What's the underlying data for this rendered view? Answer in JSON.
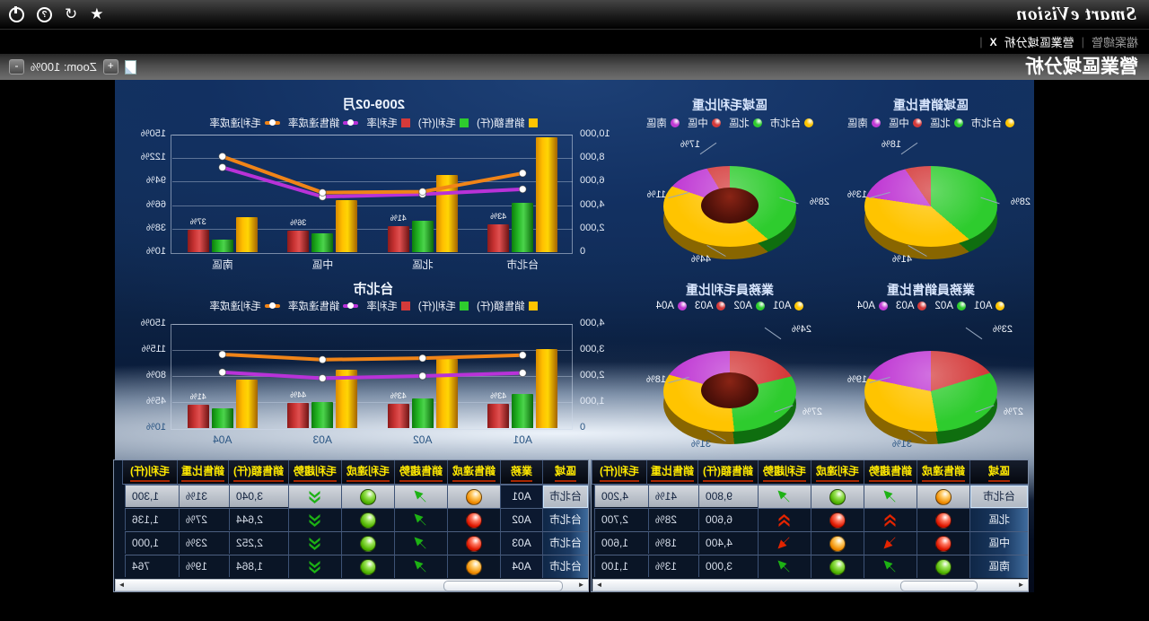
{
  "app": {
    "logo": "Smart eVision",
    "window_icons": [
      "star",
      "refresh",
      "help",
      "power"
    ]
  },
  "tabs": {
    "separator": "|",
    "close_glyph": "X",
    "items": [
      {
        "label": "檔案總管",
        "active": false
      },
      {
        "label": "營業區域分析",
        "active": true
      }
    ]
  },
  "page": {
    "title": "營業區域分析",
    "zoom_label": "Zoom: 100%",
    "zoom_in": "+",
    "zoom_out": "-"
  },
  "colors": {
    "sales_bar": "#ffc400",
    "profit_bar": "#2ecc2e",
    "rate_bar": "#d43a3a",
    "sales_rate_line": "#b832d8",
    "profit_rate_line": "#f08418",
    "header_text": "#ffe900",
    "header_underline": "#a82600",
    "series_taipei": "#ffc400",
    "series_north": "#2ecc2e",
    "series_central": "#d43a3a",
    "series_south": "#c03ad4"
  },
  "chart_data": [
    {
      "type": "bar",
      "id": "combo-month",
      "title": "2009-02月",
      "categories": [
        "台北市",
        "北區",
        "中區",
        "南區"
      ],
      "series": [
        {
          "name": "銷售額(仟)",
          "kind": "bar",
          "axis": "left",
          "color_key": "sales_bar",
          "values": [
            9800,
            6600,
            4400,
            3000
          ]
        },
        {
          "name": "毛利(仟)",
          "kind": "bar",
          "axis": "left",
          "color_key": "profit_bar",
          "values": [
            4200,
            2700,
            1600,
            1100
          ]
        },
        {
          "name": "毛利率",
          "kind": "bar",
          "axis": "right",
          "color_key": "rate_bar",
          "values": [
            43,
            41,
            36,
            37
          ],
          "labels": [
            "43%",
            "41%",
            "36%",
            "37%"
          ]
        },
        {
          "name": "銷售達成率",
          "kind": "line",
          "axis": "right",
          "color_key": "sales_rate_line",
          "values": [
            85,
            79,
            76,
            111
          ]
        },
        {
          "name": "毛利達成率",
          "kind": "line",
          "axis": "right",
          "color_key": "profit_rate_line",
          "values": [
            104,
            82,
            81,
            124
          ]
        }
      ],
      "left_axis": {
        "min": 0,
        "max": 10000,
        "ticks": [
          "0",
          "2,000",
          "4,000",
          "6,000",
          "8,000",
          "10,000"
        ]
      },
      "right_axis": {
        "min": 10,
        "max": 150,
        "ticks": [
          "10%",
          "38%",
          "66%",
          "94%",
          "122%",
          "150%"
        ]
      },
      "grid": true,
      "legend_position": "top"
    },
    {
      "type": "bar",
      "id": "combo-taipei",
      "title": "台北市",
      "categories": [
        "A01",
        "A02",
        "A03",
        "A04"
      ],
      "series": [
        {
          "name": "銷售額(仟)",
          "kind": "bar",
          "axis": "left",
          "color_key": "sales_bar",
          "values": [
            3040,
            2644,
            2252,
            1864
          ]
        },
        {
          "name": "毛利(仟)",
          "kind": "bar",
          "axis": "left",
          "color_key": "profit_bar",
          "values": [
            1300,
            1136,
            1000,
            764
          ]
        },
        {
          "name": "毛利率",
          "kind": "bar",
          "axis": "right",
          "color_key": "rate_bar",
          "values": [
            43,
            43,
            44,
            41
          ],
          "labels": [
            "43%",
            "43%",
            "44%",
            "41%"
          ]
        },
        {
          "name": "銷售達成率",
          "kind": "line",
          "axis": "right",
          "color_key": "sales_rate_line",
          "values": [
            84,
            80,
            77,
            85
          ]
        },
        {
          "name": "毛利達成率",
          "kind": "line",
          "axis": "right",
          "color_key": "profit_rate_line",
          "values": [
            108,
            104,
            102,
            109
          ]
        }
      ],
      "left_axis": {
        "min": 0,
        "max": 4000,
        "ticks": [
          "0",
          "1,000",
          "2,000",
          "3,000",
          "4,000"
        ]
      },
      "right_axis": {
        "min": 10,
        "max": 150,
        "ticks": [
          "10%",
          "45%",
          "80%",
          "115%",
          "150%"
        ]
      },
      "grid": true,
      "legend_position": "top",
      "dark_bottom_labels": true
    },
    {
      "type": "pie",
      "id": "pie-region-sales",
      "title": "區域銷售比重",
      "donut": false,
      "slices": [
        {
          "name": "台北市",
          "color_key": "series_taipei",
          "value": 41,
          "label": "41%",
          "anchor": "bottom-right"
        },
        {
          "name": "北區",
          "color_key": "series_north",
          "value": 28,
          "label": "28%",
          "anchor": "left"
        },
        {
          "name": "中區",
          "color_key": "series_central",
          "value": 18,
          "label": "18%",
          "anchor": "top-right"
        },
        {
          "name": "南區",
          "color_key": "series_south",
          "value": 13,
          "label": "13%",
          "anchor": "right"
        }
      ],
      "slice_order": [
        "中區",
        "南區",
        "台北市",
        "北區"
      ],
      "start_angle": -30,
      "legend_position": "top"
    },
    {
      "type": "pie",
      "id": "pie-region-profit",
      "title": "區域毛利比重",
      "donut": true,
      "slices": [
        {
          "name": "台北市",
          "color_key": "series_taipei",
          "value": 44,
          "label": "44%",
          "anchor": "bottom-right"
        },
        {
          "name": "北區",
          "color_key": "series_north",
          "value": 28,
          "label": "28%",
          "anchor": "left"
        },
        {
          "name": "中區",
          "color_key": "series_central",
          "value": 17,
          "label": "17%",
          "anchor": "top-right"
        },
        {
          "name": "南區",
          "color_key": "series_south",
          "value": 11,
          "label": "11%",
          "anchor": "right"
        }
      ],
      "slice_order": [
        "中區",
        "南區",
        "台北市",
        "北區"
      ],
      "start_angle": -30,
      "legend_position": "top"
    },
    {
      "type": "pie",
      "id": "pie-staff-sales",
      "title": "業務員銷售比重",
      "donut": false,
      "slices": [
        {
          "name": "A01",
          "color_key": "series_taipei",
          "value": 31,
          "label": "31%",
          "anchor": "bottom-right"
        },
        {
          "name": "A02",
          "color_key": "series_north",
          "value": 27,
          "label": "27%",
          "anchor": "lower-left"
        },
        {
          "name": "A03",
          "color_key": "series_central",
          "value": 23,
          "label": "23%",
          "anchor": "top-left"
        },
        {
          "name": "A04",
          "color_key": "series_south",
          "value": 19,
          "label": "19%",
          "anchor": "right"
        }
      ],
      "slice_order": [
        "A04",
        "A01",
        "A02",
        "A03"
      ],
      "start_angle": 10,
      "legend_position": "top"
    },
    {
      "type": "pie",
      "id": "pie-staff-profit",
      "title": "業務員毛利比重",
      "donut": true,
      "slices": [
        {
          "name": "A01",
          "color_key": "series_taipei",
          "value": 31,
          "label": "31%",
          "anchor": "bottom-right"
        },
        {
          "name": "A02",
          "color_key": "series_north",
          "value": 27,
          "label": "27%",
          "anchor": "lower-left"
        },
        {
          "name": "A03",
          "color_key": "series_central",
          "value": 24,
          "label": "24%",
          "anchor": "top-left"
        },
        {
          "name": "A04",
          "color_key": "series_south",
          "value": 18,
          "label": "18%",
          "anchor": "right"
        }
      ],
      "slice_order": [
        "A04",
        "A01",
        "A02",
        "A03"
      ],
      "start_angle": 10,
      "legend_position": "top"
    }
  ],
  "tables": [
    {
      "id": "region-table",
      "columns": [
        "區域",
        "銷售達成",
        "銷售趨勢",
        "毛利達成",
        "毛利趨勢",
        "銷售額(仟)",
        "銷售比重",
        "毛利(仟)"
      ],
      "rows": [
        {
          "region": "台北市",
          "selected": true,
          "cells": [
            "icon:ball-orange",
            "icon:arrow-up-green",
            "icon:ball-green",
            "icon:arrow-up-green",
            "9,800",
            "41%",
            "4,200"
          ]
        },
        {
          "region": "北區",
          "cells": [
            "icon:ball-red",
            "icon:chevron-up-red",
            "icon:ball-red",
            "icon:chevron-up-red",
            "6,600",
            "28%",
            "2,700"
          ]
        },
        {
          "region": "中區",
          "cells": [
            "icon:ball-red",
            "icon:arrow-down-red",
            "icon:ball-orange",
            "icon:arrow-down-red",
            "4,400",
            "18%",
            "1,600"
          ]
        },
        {
          "region": "南區",
          "cells": [
            "icon:ball-green",
            "icon:arrow-up-green",
            "icon:ball-green",
            "icon:arrow-up-green",
            "3,000",
            "13%",
            "1,100"
          ]
        }
      ]
    },
    {
      "id": "staff-table",
      "columns": [
        "區域",
        "業務",
        "銷售達成",
        "銷售趨勢",
        "毛利達成",
        "毛利趨勢",
        "銷售額(仟)",
        "銷售比重",
        "毛利(仟)"
      ],
      "rows": [
        {
          "region": "台北市",
          "staff": "A01",
          "selected": true,
          "cells": [
            "icon:ball-orange",
            "icon:arrow-up-green",
            "icon:ball-green",
            "icon:chevron-down-green",
            "3,040",
            "31%",
            "1,300"
          ]
        },
        {
          "region": "台北市",
          "staff": "A02",
          "cells": [
            "icon:ball-red",
            "icon:arrow-up-green",
            "icon:ball-green",
            "icon:chevron-down-green",
            "2,644",
            "27%",
            "1,136"
          ]
        },
        {
          "region": "台北市",
          "staff": "A03",
          "cells": [
            "icon:ball-red",
            "icon:arrow-up-green",
            "icon:ball-green",
            "icon:chevron-down-green",
            "2,252",
            "23%",
            "1,000"
          ]
        },
        {
          "region": "台北市",
          "staff": "A04",
          "cells": [
            "icon:ball-orange",
            "icon:arrow-up-green",
            "icon:ball-green",
            "icon:chevron-down-green",
            "1,864",
            "19%",
            "764"
          ]
        }
      ]
    }
  ]
}
